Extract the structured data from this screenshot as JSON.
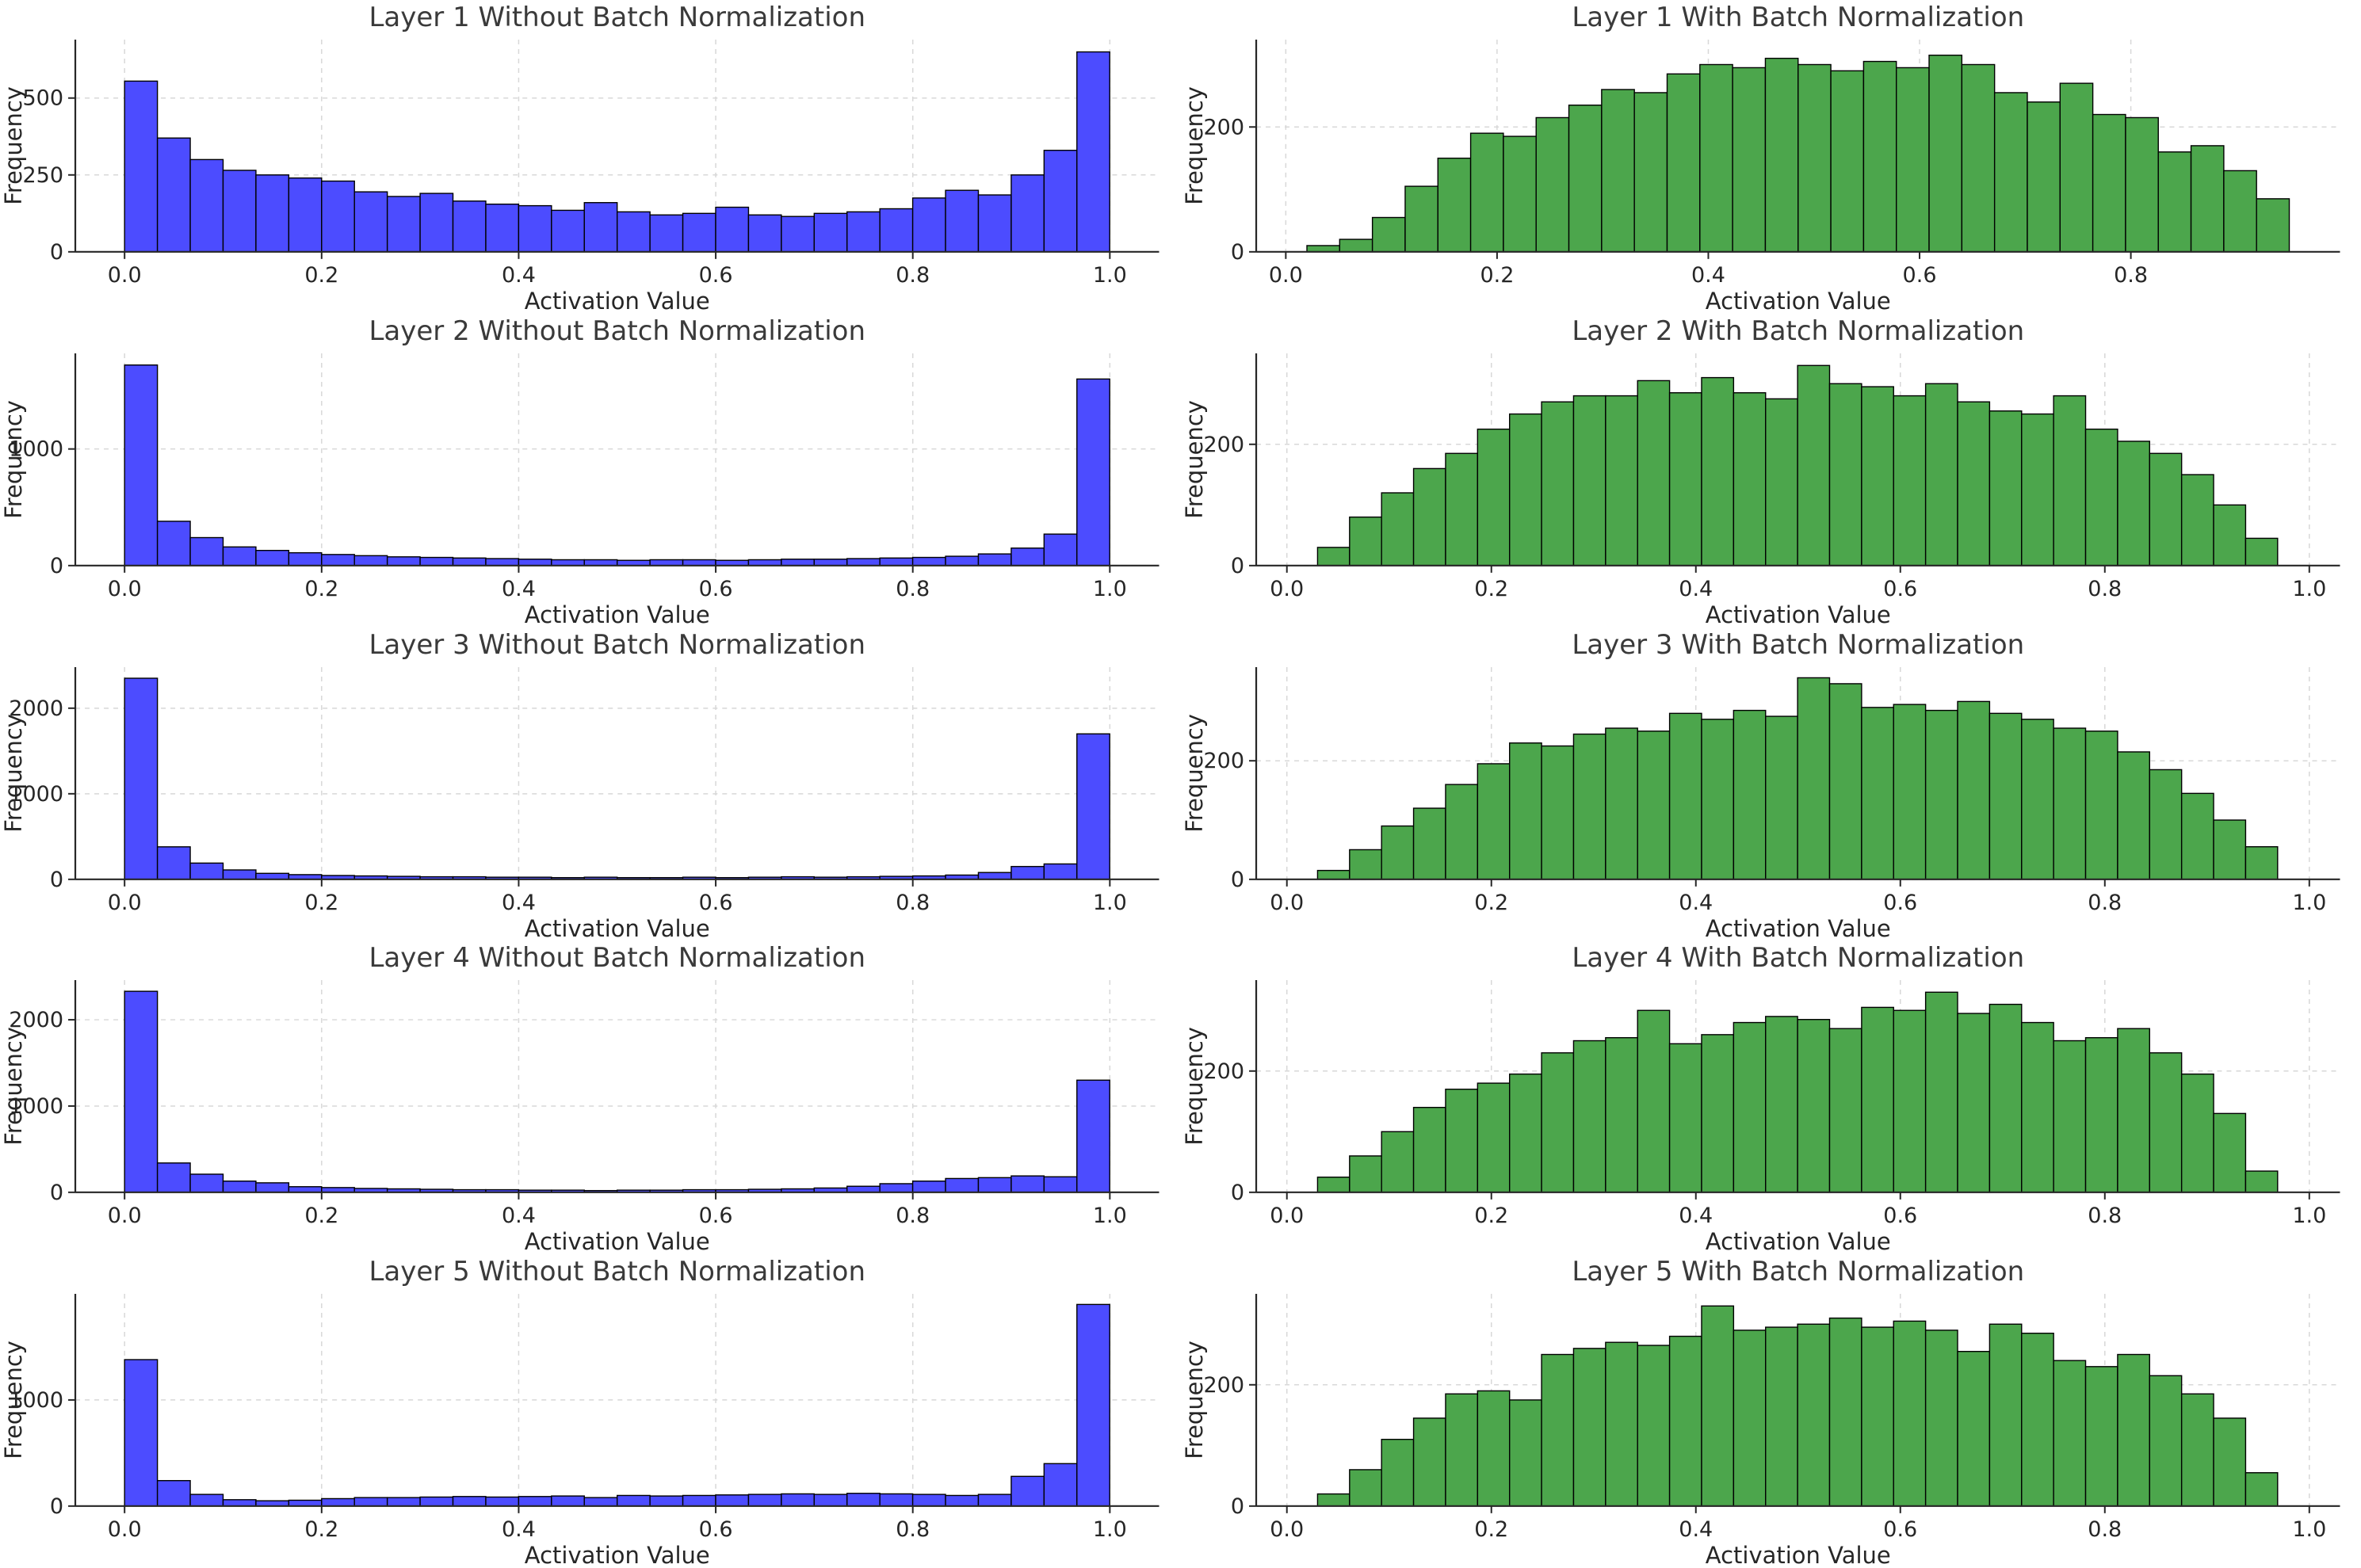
{
  "figure": {
    "background": "#ffffff",
    "grid_color": "#d8d8d8",
    "spine_color": "#262626",
    "rows": 5,
    "cols": 2
  },
  "chart_data": [
    {
      "type": "bar",
      "title": "Layer 1 Without Batch Normalization",
      "xlabel": "Activation Value",
      "ylabel": "Frequency",
      "bar_color": "#4c4cff",
      "edge_color": "#000000",
      "bin_start": 0.0,
      "bin_width": 0.03333,
      "values": [
        555,
        370,
        300,
        265,
        250,
        240,
        230,
        195,
        180,
        190,
        165,
        155,
        150,
        135,
        160,
        130,
        120,
        125,
        145,
        120,
        115,
        125,
        130,
        140,
        175,
        200,
        185,
        250,
        330,
        650
      ],
      "xlim": [
        -0.05,
        1.05
      ],
      "xticks": [
        0.0,
        0.2,
        0.4,
        0.6,
        0.8,
        1.0
      ],
      "ylim": [
        0,
        690
      ],
      "yticks": [
        0,
        250,
        500
      ],
      "legend": "none",
      "grid": true
    },
    {
      "type": "bar",
      "title": "Layer 1 With Batch Normalization",
      "xlabel": "Activation Value",
      "ylabel": "Frequency",
      "bar_color": "#4ca64c",
      "edge_color": "#000000",
      "bin_start": 0.02,
      "bin_width": 0.031,
      "values": [
        10,
        20,
        55,
        105,
        150,
        190,
        185,
        215,
        235,
        260,
        255,
        285,
        300,
        295,
        310,
        300,
        290,
        305,
        295,
        315,
        300,
        255,
        240,
        270,
        220,
        215,
        160,
        170,
        130,
        85
      ],
      "xlim": [
        -0.028,
        0.998
      ],
      "xticks": [
        0.0,
        0.2,
        0.4,
        0.6,
        0.8
      ],
      "ylim": [
        0,
        340
      ],
      "yticks": [
        0,
        200
      ],
      "legend": "none",
      "grid": true
    },
    {
      "type": "bar",
      "title": "Layer 2 Without Batch Normalization",
      "xlabel": "Activation Value",
      "ylabel": "Frequency",
      "bar_color": "#4c4cff",
      "edge_color": "#000000",
      "bin_start": 0.0,
      "bin_width": 0.03333,
      "values": [
        1720,
        380,
        240,
        160,
        130,
        110,
        95,
        85,
        75,
        70,
        65,
        60,
        55,
        50,
        50,
        45,
        50,
        50,
        45,
        50,
        55,
        55,
        60,
        65,
        70,
        80,
        100,
        150,
        270,
        1600
      ],
      "xlim": [
        -0.05,
        1.05
      ],
      "xticks": [
        0.0,
        0.2,
        0.4,
        0.6,
        0.8,
        1.0
      ],
      "ylim": [
        0,
        1820
      ],
      "yticks": [
        0,
        1000
      ],
      "legend": "none",
      "grid": true
    },
    {
      "type": "bar",
      "title": "Layer 2 With Batch Normalization",
      "xlabel": "Activation Value",
      "ylabel": "Frequency",
      "bar_color": "#4ca64c",
      "edge_color": "#000000",
      "bin_start": 0.03,
      "bin_width": 0.0313,
      "values": [
        30,
        80,
        120,
        160,
        185,
        225,
        250,
        270,
        280,
        280,
        305,
        285,
        310,
        285,
        275,
        330,
        300,
        295,
        280,
        300,
        270,
        255,
        250,
        280,
        225,
        205,
        185,
        150,
        100,
        45
      ],
      "xlim": [
        -0.03,
        1.03
      ],
      "xticks": [
        0.0,
        0.2,
        0.4,
        0.6,
        0.8,
        1.0
      ],
      "ylim": [
        0,
        350
      ],
      "yticks": [
        0,
        200
      ],
      "legend": "none",
      "grid": true
    },
    {
      "type": "bar",
      "title": "Layer 3 Without Batch Normalization",
      "xlabel": "Activation Value",
      "ylabel": "Frequency",
      "bar_color": "#4c4cff",
      "edge_color": "#000000",
      "bin_start": 0.0,
      "bin_width": 0.03333,
      "values": [
        2350,
        380,
        190,
        110,
        70,
        55,
        45,
        40,
        35,
        30,
        30,
        25,
        25,
        20,
        25,
        20,
        20,
        25,
        20,
        25,
        30,
        25,
        30,
        35,
        40,
        50,
        80,
        150,
        180,
        1700
      ],
      "xlim": [
        -0.05,
        1.05
      ],
      "xticks": [
        0.0,
        0.2,
        0.4,
        0.6,
        0.8,
        1.0
      ],
      "ylim": [
        0,
        2480
      ],
      "yticks": [
        0,
        1000,
        2000
      ],
      "legend": "none",
      "grid": true
    },
    {
      "type": "bar",
      "title": "Layer 3 With Batch Normalization",
      "xlabel": "Activation Value",
      "ylabel": "Frequency",
      "bar_color": "#4ca64c",
      "edge_color": "#000000",
      "bin_start": 0.03,
      "bin_width": 0.0313,
      "values": [
        15,
        50,
        90,
        120,
        160,
        195,
        230,
        225,
        245,
        255,
        250,
        280,
        270,
        285,
        275,
        340,
        330,
        290,
        295,
        285,
        300,
        280,
        270,
        255,
        250,
        215,
        185,
        145,
        100,
        55
      ],
      "xlim": [
        -0.03,
        1.03
      ],
      "xticks": [
        0.0,
        0.2,
        0.4,
        0.6,
        0.8,
        1.0
      ],
      "ylim": [
        0,
        358
      ],
      "yticks": [
        0,
        200
      ],
      "legend": "none",
      "grid": true
    },
    {
      "type": "bar",
      "title": "Layer 4 Without Batch Normalization",
      "xlabel": "Activation Value",
      "ylabel": "Frequency",
      "bar_color": "#4c4cff",
      "edge_color": "#000000",
      "bin_start": 0.0,
      "bin_width": 0.03333,
      "values": [
        2330,
        340,
        210,
        130,
        110,
        65,
        55,
        45,
        40,
        35,
        30,
        30,
        25,
        25,
        20,
        25,
        25,
        30,
        30,
        35,
        40,
        50,
        70,
        100,
        130,
        160,
        170,
        190,
        180,
        1300
      ],
      "xlim": [
        -0.05,
        1.05
      ],
      "xticks": [
        0.0,
        0.2,
        0.4,
        0.6,
        0.8,
        1.0
      ],
      "ylim": [
        0,
        2460
      ],
      "yticks": [
        0,
        1000,
        2000
      ],
      "legend": "none",
      "grid": true
    },
    {
      "type": "bar",
      "title": "Layer 4 With Batch Normalization",
      "xlabel": "Activation Value",
      "ylabel": "Frequency",
      "bar_color": "#4ca64c",
      "edge_color": "#000000",
      "bin_start": 0.03,
      "bin_width": 0.0313,
      "values": [
        25,
        60,
        100,
        140,
        170,
        180,
        195,
        230,
        250,
        255,
        300,
        245,
        260,
        280,
        290,
        285,
        270,
        305,
        300,
        330,
        295,
        310,
        280,
        250,
        255,
        270,
        230,
        195,
        130,
        35
      ],
      "xlim": [
        -0.03,
        1.03
      ],
      "xticks": [
        0.0,
        0.2,
        0.4,
        0.6,
        0.8,
        1.0
      ],
      "ylim": [
        0,
        350
      ],
      "yticks": [
        0,
        200
      ],
      "legend": "none",
      "grid": true
    },
    {
      "type": "bar",
      "title": "Layer 5 Without Batch Normalization",
      "xlabel": "Activation Value",
      "ylabel": "Frequency",
      "bar_color": "#4c4cff",
      "edge_color": "#000000",
      "bin_start": 0.0,
      "bin_width": 0.03333,
      "values": [
        1380,
        240,
        110,
        60,
        50,
        55,
        70,
        80,
        80,
        85,
        90,
        85,
        90,
        95,
        80,
        100,
        95,
        100,
        105,
        110,
        115,
        110,
        120,
        115,
        110,
        100,
        110,
        280,
        400,
        1900
      ],
      "xlim": [
        -0.05,
        1.05
      ],
      "xticks": [
        0.0,
        0.2,
        0.4,
        0.6,
        0.8,
        1.0
      ],
      "ylim": [
        0,
        2000
      ],
      "yticks": [
        0,
        1000
      ],
      "legend": "none",
      "grid": true
    },
    {
      "type": "bar",
      "title": "Layer 5 With Batch Normalization",
      "xlabel": "Activation Value",
      "ylabel": "Frequency",
      "bar_color": "#4ca64c",
      "edge_color": "#000000",
      "bin_start": 0.03,
      "bin_width": 0.0313,
      "values": [
        20,
        60,
        110,
        145,
        185,
        190,
        175,
        250,
        260,
        270,
        265,
        280,
        330,
        290,
        295,
        300,
        310,
        295,
        305,
        290,
        255,
        300,
        285,
        240,
        230,
        250,
        215,
        185,
        145,
        55
      ],
      "xlim": [
        -0.03,
        1.03
      ],
      "xticks": [
        0.0,
        0.2,
        0.4,
        0.6,
        0.8,
        1.0
      ],
      "ylim": [
        0,
        350
      ],
      "yticks": [
        0,
        200
      ],
      "legend": "none",
      "grid": true
    }
  ]
}
